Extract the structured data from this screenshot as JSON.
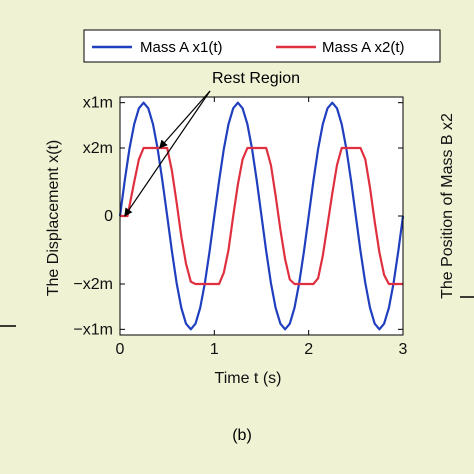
{
  "chart_data": {
    "type": "line",
    "xlabel": "Time t (s)",
    "ylabel": "The Displacement x(t)",
    "right_label": "The Position of Mass B x2",
    "xlim": [
      0,
      3
    ],
    "x_ticks": [
      0,
      1,
      2,
      3
    ],
    "x_tick_labels": [
      "0",
      "1",
      "2",
      "3"
    ],
    "ylim": [
      -1.05,
      1.05
    ],
    "y_ticks": [
      1.0,
      0.6,
      0,
      -0.6,
      -1.0
    ],
    "y_tick_labels": [
      "x1m",
      "x2m",
      "0",
      "−x2m",
      "−x1m"
    ],
    "grid": false,
    "legend_position": "top",
    "series": [
      {
        "name": "Mass A x1(t)",
        "color": "#1f3fbf",
        "x": [
          0,
          0.05,
          0.1,
          0.15,
          0.2,
          0.25,
          0.3,
          0.35,
          0.4,
          0.45,
          0.5,
          0.55,
          0.6,
          0.65,
          0.7,
          0.75,
          0.8,
          0.85,
          0.9,
          0.95,
          1.0,
          1.05,
          1.1,
          1.15,
          1.2,
          1.25,
          1.3,
          1.35,
          1.4,
          1.45,
          1.5,
          1.55,
          1.6,
          1.65,
          1.7,
          1.75,
          1.8,
          1.85,
          1.9,
          1.95,
          2.0,
          2.05,
          2.1,
          2.15,
          2.2,
          2.25,
          2.3,
          2.35,
          2.4,
          2.45,
          2.5,
          2.55,
          2.6,
          2.65,
          2.7,
          2.75,
          2.8,
          2.85,
          2.9,
          2.95,
          3.0
        ],
        "values": [
          0,
          0.31,
          0.59,
          0.81,
          0.95,
          1.0,
          0.95,
          0.81,
          0.59,
          0.31,
          0,
          -0.31,
          -0.59,
          -0.81,
          -0.95,
          -1.0,
          -0.95,
          -0.81,
          -0.59,
          -0.31,
          0,
          0.31,
          0.59,
          0.81,
          0.95,
          1.0,
          0.95,
          0.81,
          0.59,
          0.31,
          0,
          -0.31,
          -0.59,
          -0.81,
          -0.95,
          -1.0,
          -0.95,
          -0.81,
          -0.59,
          -0.31,
          0,
          0.31,
          0.59,
          0.81,
          0.95,
          1.0,
          0.95,
          0.81,
          0.59,
          0.31,
          0,
          -0.31,
          -0.59,
          -0.81,
          -0.95,
          -1.0,
          -0.95,
          -0.81,
          -0.59,
          -0.31,
          0
        ]
      },
      {
        "name": "Mass A x2(t)",
        "color": "#e03040",
        "x": [
          0,
          0.08,
          0.15,
          0.2,
          0.25,
          0.3,
          0.35,
          0.4,
          0.45,
          0.5,
          0.55,
          0.6,
          0.65,
          0.7,
          0.75,
          0.8,
          0.85,
          0.9,
          0.95,
          1.0,
          1.05,
          1.1,
          1.15,
          1.2,
          1.25,
          1.3,
          1.35,
          1.4,
          1.45,
          1.5,
          1.55,
          1.6,
          1.65,
          1.7,
          1.75,
          1.8,
          1.85,
          1.9,
          1.95,
          2.0,
          2.05,
          2.1,
          2.15,
          2.2,
          2.25,
          2.3,
          2.35,
          2.4,
          2.45,
          2.5,
          2.55,
          2.6,
          2.65,
          2.7,
          2.75,
          2.8,
          2.85,
          2.9,
          2.95,
          3.0
        ],
        "values": [
          0,
          0,
          0.3,
          0.5,
          0.6,
          0.6,
          0.6,
          0.6,
          0.6,
          0.6,
          0.4,
          0.12,
          -0.18,
          -0.42,
          -0.58,
          -0.6,
          -0.6,
          -0.6,
          -0.6,
          -0.6,
          -0.6,
          -0.5,
          -0.3,
          0.0,
          0.28,
          0.5,
          0.6,
          0.6,
          0.6,
          0.6,
          0.6,
          0.45,
          0.18,
          -0.12,
          -0.38,
          -0.56,
          -0.6,
          -0.6,
          -0.6,
          -0.6,
          -0.6,
          -0.55,
          -0.35,
          -0.08,
          0.2,
          0.45,
          0.6,
          0.6,
          0.6,
          0.6,
          0.6,
          0.5,
          0.25,
          -0.05,
          -0.32,
          -0.52,
          -0.6,
          -0.6,
          -0.6,
          -0.6
        ]
      }
    ],
    "annotation": {
      "text": "Rest Region",
      "targets": [
        [
          0.05,
          0.0
        ],
        [
          0.42,
          0.6
        ]
      ]
    }
  },
  "caption": "(b)",
  "legend": {
    "entry1": "Mass A x1(t)",
    "entry2": "Mass A x2(t)"
  }
}
